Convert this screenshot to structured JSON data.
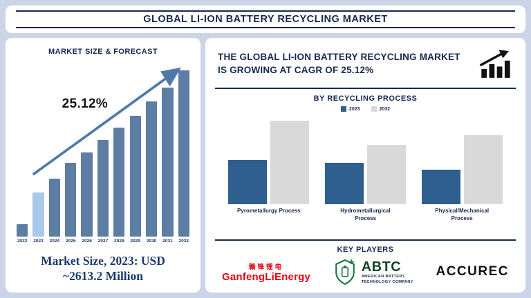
{
  "title": {
    "text": "GLOBAL LI-ION BATTERY RECYCLING MARKET"
  },
  "left": {
    "footer_line1": "Market Size, 2023: USD",
    "footer_line2": "~2613.2 Million"
  },
  "right": {
    "statement": "THE GLOBAL LI-ION BATTERY RECYCLING MARKET IS GROWING AT CAGR OF 25.12%",
    "key_players_heading": "KEY PLAYERS",
    "players": {
      "ganfeng": {
        "cn": "赣锋锂电",
        "en": "GanfengLiEnergy",
        "color": "#e60012"
      },
      "abtc": {
        "abbr": "ABTC",
        "sub1": "AMERICAN BATTERY",
        "sub2": "TECHNOLOGY COMPANY",
        "color": "#1e7a46"
      },
      "accurec": {
        "text": "ACCUREC",
        "color": "#111111"
      }
    }
  },
  "chart_data": [
    {
      "type": "bar",
      "title": "MARKET SIZE & FORECAST",
      "x": [
        "2022",
        "2023",
        "2024",
        "2025",
        "2026",
        "2027",
        "2028",
        "2029",
        "2030",
        "2031",
        "2032"
      ],
      "bar_heights_pct": [
        7,
        25,
        33,
        42,
        48,
        55,
        62,
        69,
        77,
        85,
        95
      ],
      "values_note": "y-axis unlabeled; heights are relative (% of plot height)",
      "highlight_year": "2023",
      "bar_color": "#5d7da4",
      "highlight_color": "#a9c9ea",
      "annotation": "25.12%",
      "cagr": "25.12%",
      "known_point": "Market Size 2023 = USD ~2613.2 Million",
      "legend_position": "none",
      "grid": false
    },
    {
      "type": "bar",
      "title": "BY RECYCLING PROCESS",
      "categories": [
        "Pyrometallurgy Process",
        "Hydrometallurgical Process",
        "Physical/Mechanical Process"
      ],
      "series": [
        {
          "name": "2023",
          "color": "#2e5f8f",
          "values_pct": [
            51,
            48,
            40
          ]
        },
        {
          "name": "2032",
          "color": "#d9d9d9",
          "values_pct": [
            96,
            68,
            79
          ]
        }
      ],
      "values_note": "y-axis unlabeled; values are relative bar heights (% of plot height)",
      "legend_position": "top-center",
      "grid": false
    }
  ],
  "colors": {
    "background": "#ccd5e7",
    "navy": "#16284f",
    "forecast_bar": "#5d7da4",
    "forecast_highlight": "#a9c9ea",
    "series_2023": "#2e5f8f",
    "series_2032": "#d9d9d9",
    "trend_arrow": "#4d7aa8",
    "ganfeng_red": "#e60012",
    "abtc_green": "#1e7a46"
  }
}
